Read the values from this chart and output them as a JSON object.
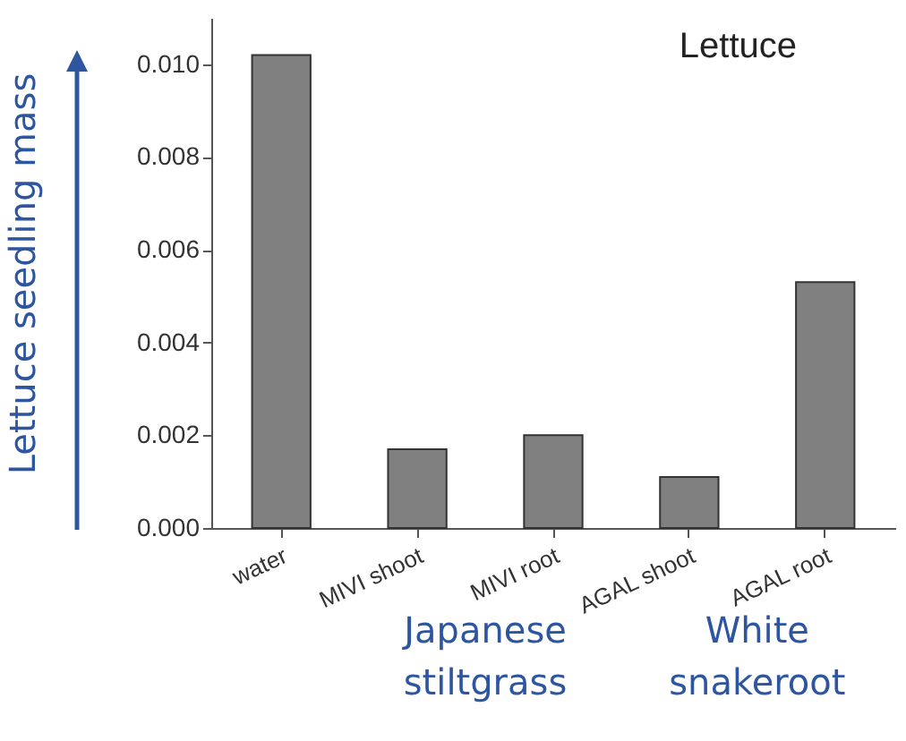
{
  "chart_data": {
    "type": "bar",
    "title": "Lettuce",
    "ylabel": "Lettuce seedling mass",
    "categories": [
      "water",
      "MIVI shoot",
      "MIVI root",
      "AGAL shoot",
      "AGAL root"
    ],
    "values": [
      0.0102,
      0.0017,
      0.002,
      0.0011,
      0.0053
    ],
    "color": "#808080",
    "ylim": [
      0,
      0.011
    ],
    "yticks": [
      {
        "value": 0,
        "label": "0.000"
      },
      {
        "value": 0.002,
        "label": "0.002"
      },
      {
        "value": 0.004,
        "label": "0.004"
      },
      {
        "value": 0.006,
        "label": "0.006"
      },
      {
        "value": 0.008,
        "label": "0.008"
      },
      {
        "value": 0.01,
        "label": "0.010"
      }
    ],
    "annotations": [
      "Japanese stiltgrass",
      "White snakeroot"
    ],
    "grid": false
  }
}
